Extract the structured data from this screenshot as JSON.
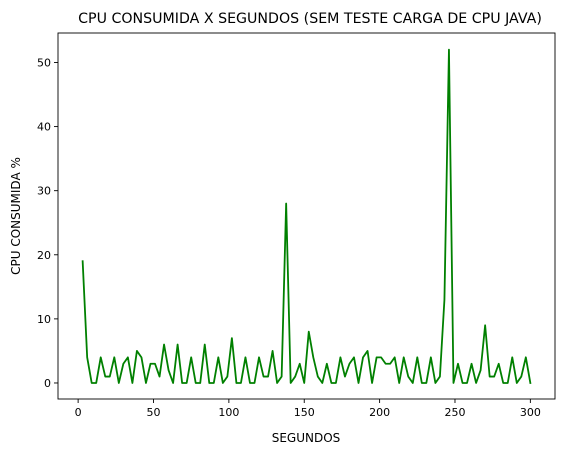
{
  "chart_data": {
    "type": "line",
    "title": "CPU CONSUMIDA X SEGUNDOS (SEM TESTE CARGA DE CPU JAVA)",
    "xlabel": "SEGUNDOS",
    "ylabel": "CPU CONSUMIDA %",
    "xlim": [
      -13.35,
      316.35
    ],
    "ylim": [
      -2.5,
      54.6
    ],
    "xticks": [
      0,
      50,
      100,
      150,
      200,
      250,
      300
    ],
    "yticks": [
      0,
      10,
      20,
      30,
      40,
      50
    ],
    "grid": false,
    "line_color": "#008000",
    "x": [
      3,
      6,
      9,
      12,
      15,
      18,
      21,
      24,
      27,
      30,
      33,
      36,
      39,
      42,
      45,
      48,
      51,
      54,
      57,
      60,
      63,
      66,
      69,
      72,
      75,
      78,
      81,
      84,
      87,
      90,
      93,
      96,
      99,
      102,
      105,
      108,
      111,
      114,
      117,
      120,
      123,
      126,
      129,
      132,
      135,
      138,
      141,
      144,
      147,
      150,
      153,
      156,
      159,
      162,
      165,
      168,
      171,
      174,
      177,
      180,
      183,
      186,
      189,
      192,
      195,
      198,
      201,
      204,
      207,
      210,
      213,
      216,
      219,
      222,
      225,
      228,
      231,
      234,
      237,
      240,
      243,
      246,
      249,
      252,
      255,
      258,
      261,
      264,
      267,
      270,
      273,
      276,
      279,
      282,
      285,
      288,
      291,
      294,
      297,
      300
    ],
    "y": [
      19,
      4,
      0,
      0,
      4,
      1,
      1,
      4,
      0,
      3,
      4,
      0,
      5,
      4,
      0,
      3,
      3,
      1,
      6,
      2,
      0,
      6,
      0,
      0,
      4,
      0,
      0,
      6,
      0,
      0,
      4,
      0,
      1,
      7,
      0,
      0,
      4,
      0,
      0,
      4,
      1,
      1,
      5,
      0,
      1,
      28,
      0,
      1,
      3,
      0,
      8,
      4,
      1,
      0,
      3,
      0,
      0,
      4,
      1,
      3,
      4,
      0,
      4,
      5,
      0,
      4,
      4,
      3,
      3,
      4,
      0,
      4,
      1,
      0,
      4,
      0,
      0,
      4,
      0,
      1,
      13,
      52,
      0,
      3,
      0,
      0,
      3,
      0,
      2,
      9,
      1,
      1,
      3,
      0,
      0,
      4,
      0,
      1,
      4,
      0
    ]
  }
}
